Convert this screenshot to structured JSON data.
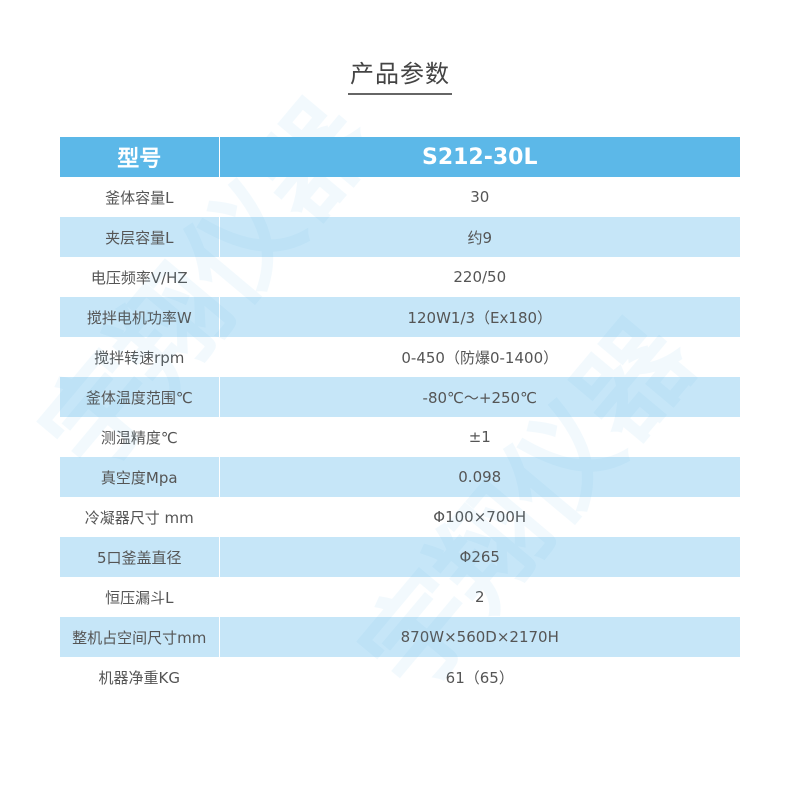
{
  "title": "产品参数",
  "watermark": "宇翔仪器",
  "colors": {
    "header": "#5cb8e8",
    "stripe": "#c6e6f8",
    "text": "#555555"
  },
  "table": {
    "header": [
      "型号",
      "S212-30L"
    ],
    "rows": [
      [
        "釜体容量L",
        "30"
      ],
      [
        "夹层容量L",
        "约9"
      ],
      [
        "电压频率V/HZ",
        "220/50"
      ],
      [
        "搅拌电机功率W",
        "120W1/3（Ex180）"
      ],
      [
        "搅拌转速rpm",
        "0-450（防爆0-1400）"
      ],
      [
        "釜体温度范围℃",
        "-80℃～+250℃"
      ],
      [
        "测温精度℃",
        "±1"
      ],
      [
        "真空度Mpa",
        "0.098"
      ],
      [
        "冷凝器尺寸 mm",
        "Φ100×700H"
      ],
      [
        "5口釜盖直径",
        "Φ265"
      ],
      [
        "恒压漏斗L",
        "2"
      ],
      [
        "整机占空间尺寸mm",
        "870W×560D×2170H"
      ],
      [
        "机器净重KG",
        "61（65）"
      ]
    ]
  }
}
